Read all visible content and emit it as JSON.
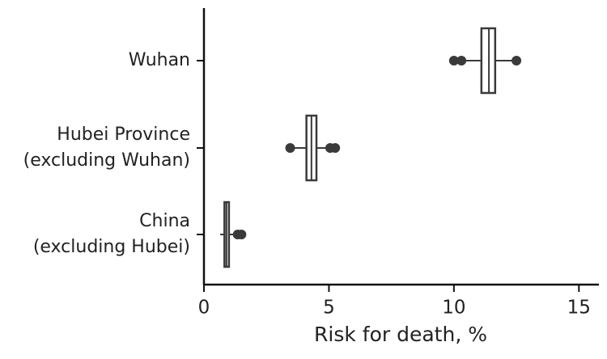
{
  "chart_data": {
    "type": "box",
    "xlabel": "Risk for death, %",
    "categories": [
      [
        "Wuhan"
      ],
      [
        "Hubei Province",
        "(excluding Wuhan)"
      ],
      [
        "China",
        "(excluding Hubei)"
      ]
    ],
    "boxes": [
      {
        "min": 10.2,
        "q1": 11.1,
        "median": 11.4,
        "q3": 11.65,
        "max": 12.4,
        "outliers": [
          10.0,
          10.3,
          12.5
        ]
      },
      {
        "min": 3.5,
        "q1": 4.1,
        "median": 4.3,
        "q3": 4.5,
        "max": 4.9,
        "outliers": [
          3.45,
          5.05,
          5.25
        ]
      },
      {
        "min": 0.65,
        "q1": 0.82,
        "median": 0.9,
        "q3": 1.0,
        "max": 1.2,
        "outliers": [
          1.35,
          1.5
        ]
      }
    ],
    "color": "#3a3a3a",
    "xlim": [
      0,
      15.8
    ],
    "xticks": [
      0,
      5,
      10,
      15
    ]
  }
}
